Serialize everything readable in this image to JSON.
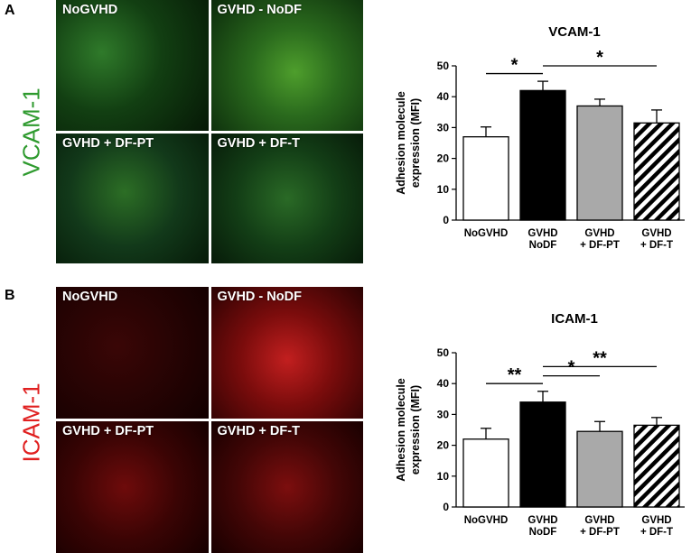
{
  "panels": [
    {
      "letter": "A",
      "stain": "VCAM-1",
      "stain_color": "#2e9a2e",
      "micrographs": [
        "NoGVHD",
        "GVHD - NoDF",
        "GVHD + DF-PT",
        "GVHD + DF-T"
      ]
    },
    {
      "letter": "B",
      "stain": "ICAM-1",
      "stain_color": "#e02020",
      "micrographs": [
        "NoGVHD",
        "GVHD - NoDF",
        "GVHD + DF-PT",
        "GVHD + DF-T"
      ]
    }
  ],
  "chart_data": [
    {
      "type": "bar",
      "title": "VCAM-1",
      "ylabel": "Adhesion molecule expression (MFI)",
      "ylabel_lines": [
        "Adhesion molecule",
        "expression (MFI)"
      ],
      "categories": [
        [
          "NoGVHD"
        ],
        [
          "GVHD",
          "NoDF"
        ],
        [
          "GVHD",
          "+ DF-PT"
        ],
        [
          "GVHD",
          "+ DF-T"
        ]
      ],
      "values": [
        27,
        42,
        37,
        31.5
      ],
      "errors": [
        3.2,
        3,
        2.2,
        4.2
      ],
      "fills": [
        "white",
        "black",
        "gray",
        "hatched"
      ],
      "ylim": [
        0,
        50
      ],
      "yticks": [
        0,
        10,
        20,
        30,
        40,
        50
      ],
      "significance": [
        {
          "from": 0,
          "to": 1,
          "label": "*",
          "y": 47.5
        },
        {
          "from": 1,
          "to": 3,
          "label": "*",
          "y": 50
        }
      ]
    },
    {
      "type": "bar",
      "title": "ICAM-1",
      "ylabel": "Adhesion molecule expression (MFI)",
      "ylabel_lines": [
        "Adhesion molecule",
        "expression (MFI)"
      ],
      "categories": [
        [
          "NoGVHD"
        ],
        [
          "GVHD",
          "NoDF"
        ],
        [
          "GVHD",
          "+ DF-PT"
        ],
        [
          "GVHD",
          "+ DF-T"
        ]
      ],
      "values": [
        22,
        34,
        24.5,
        26.5
      ],
      "errors": [
        3.5,
        3.5,
        3.2,
        2.5
      ],
      "fills": [
        "white",
        "black",
        "gray",
        "hatched"
      ],
      "ylim": [
        0,
        50
      ],
      "yticks": [
        0,
        10,
        20,
        30,
        40,
        50
      ],
      "significance": [
        {
          "from": 0,
          "to": 1,
          "label": "**",
          "y": 40
        },
        {
          "from": 1,
          "to": 2,
          "label": "*",
          "y": 42.5
        },
        {
          "from": 1,
          "to": 3,
          "label": "**",
          "y": 45.5
        }
      ]
    }
  ]
}
